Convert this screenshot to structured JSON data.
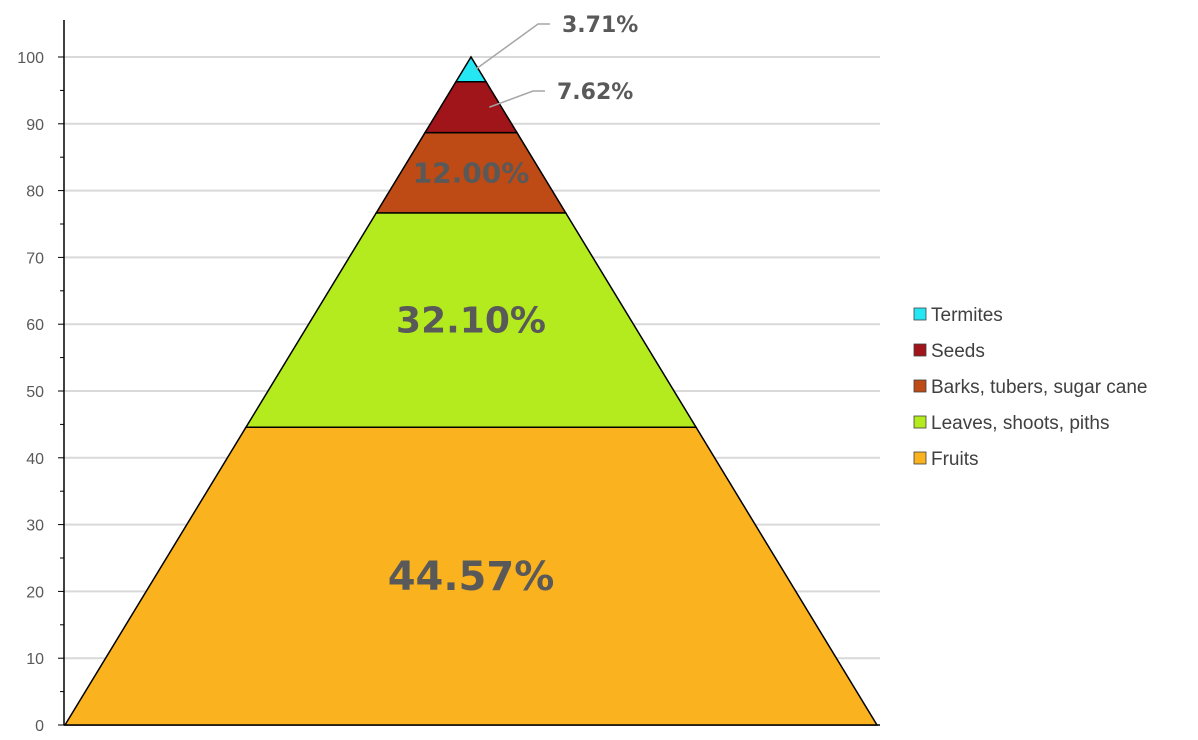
{
  "chart_data": {
    "type": "pyramid",
    "title": "",
    "xlabel": "",
    "ylabel": "",
    "ylim": [
      0,
      100
    ],
    "ytick_step": 10,
    "grid": true,
    "legend_position": "right",
    "layers_bottom_to_top": [
      {
        "name": "Fruits",
        "value": 44.57,
        "label": "44.57%",
        "color": "#FBB21F"
      },
      {
        "name": "Leaves, shoots, piths",
        "value": 32.1,
        "label": "32.10%",
        "color": "#B4EB1E"
      },
      {
        "name": "Barks, tubers, sugar cane",
        "value": 12.0,
        "label": "12.00%",
        "color": "#BE4B15"
      },
      {
        "name": "Seeds",
        "value": 7.62,
        "label": "7.62%",
        "color": "#A0151A"
      },
      {
        "name": "Termites",
        "value": 3.71,
        "label": "3.71%",
        "color": "#25E6F3"
      }
    ],
    "legend_order": [
      "Termites",
      "Seeds",
      "Barks, tubers, sugar cane",
      "Leaves, shoots, piths",
      "Fruits"
    ],
    "grid_color": "#d9d9d9",
    "axis_color": "#000000"
  }
}
